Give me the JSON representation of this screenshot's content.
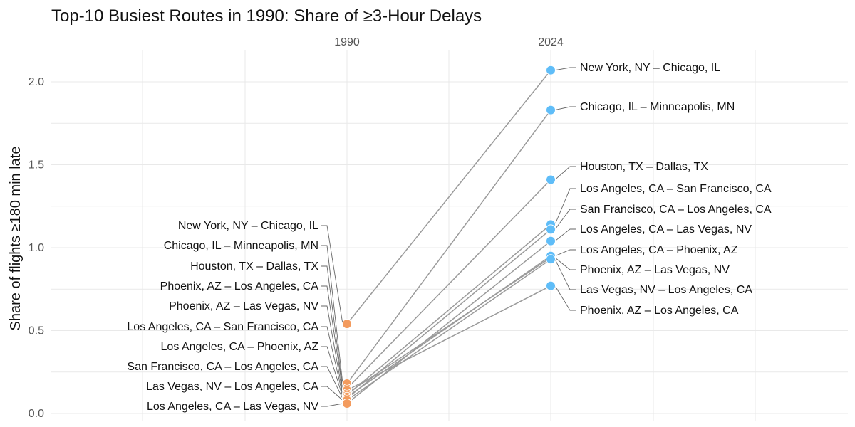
{
  "chart_data": {
    "type": "line",
    "title": "Top-10 Busiest Routes in 1990: Share of ≥3-Hour Delays",
    "xlabel": "",
    "ylabel": "Share of flights ≥180 min late",
    "ylim": [
      0,
      2.2
    ],
    "grid": true,
    "x": [
      "1990",
      "2024"
    ],
    "y_ticks": [
      "0.0",
      "0.5",
      "1.0",
      "1.5",
      "2.0"
    ],
    "x_ticks": [
      "1990",
      "2024"
    ],
    "colors": {
      "start": "#F39B5E",
      "end": "#5FBDF8",
      "lines": "#9A9A9A",
      "grid": "#E9E9E9"
    },
    "left_labels": [
      "New York, NY – Chicago, IL",
      "Chicago, IL – Minneapolis, MN",
      "Houston, TX – Dallas, TX",
      "Phoenix, AZ – Los Angeles, CA",
      "Phoenix, AZ – Las Vegas, NV",
      "Los Angeles, CA – San Francisco, CA",
      "Los Angeles, CA – Phoenix, AZ",
      "San Francisco, CA – Los Angeles, CA",
      "Las Vegas, NV – Los Angeles, CA",
      "Los Angeles, CA – Las Vegas, NV"
    ],
    "right_labels": [
      "New York, NY – Chicago, IL",
      "Chicago, IL – Minneapolis, MN",
      "Houston, TX – Dallas, TX",
      "Los Angeles, CA – San Francisco, CA",
      "San Francisco, CA – Los Angeles, CA",
      "Los Angeles, CA – Las Vegas, NV",
      "Los Angeles, CA – Phoenix, AZ",
      "Phoenix, AZ – Las Vegas, NV",
      "Las Vegas, NV – Los Angeles, CA",
      "Phoenix, AZ – Los Angeles, CA"
    ],
    "series": [
      {
        "name": "New York, NY – Chicago, IL",
        "values": [
          0.54,
          2.07
        ]
      },
      {
        "name": "Chicago, IL – Minneapolis, MN",
        "values": [
          0.18,
          1.83
        ]
      },
      {
        "name": "Houston, TX – Dallas, TX",
        "values": [
          0.15,
          1.41
        ]
      },
      {
        "name": "Phoenix, AZ – Los Angeles, CA",
        "values": [
          0.14,
          0.77
        ]
      },
      {
        "name": "Phoenix, AZ – Las Vegas, NV",
        "values": [
          0.12,
          0.94
        ]
      },
      {
        "name": "Los Angeles, CA – San Francisco, CA",
        "values": [
          0.11,
          1.14
        ]
      },
      {
        "name": "Los Angeles, CA – Phoenix, AZ",
        "values": [
          0.1,
          0.95
        ]
      },
      {
        "name": "San Francisco, CA – Los Angeles, CA",
        "values": [
          0.09,
          1.11
        ]
      },
      {
        "name": "Las Vegas, NV – Los Angeles, CA",
        "values": [
          0.08,
          0.93
        ]
      },
      {
        "name": "Los Angeles, CA – Las Vegas, NV",
        "values": [
          0.06,
          1.04
        ]
      }
    ]
  }
}
